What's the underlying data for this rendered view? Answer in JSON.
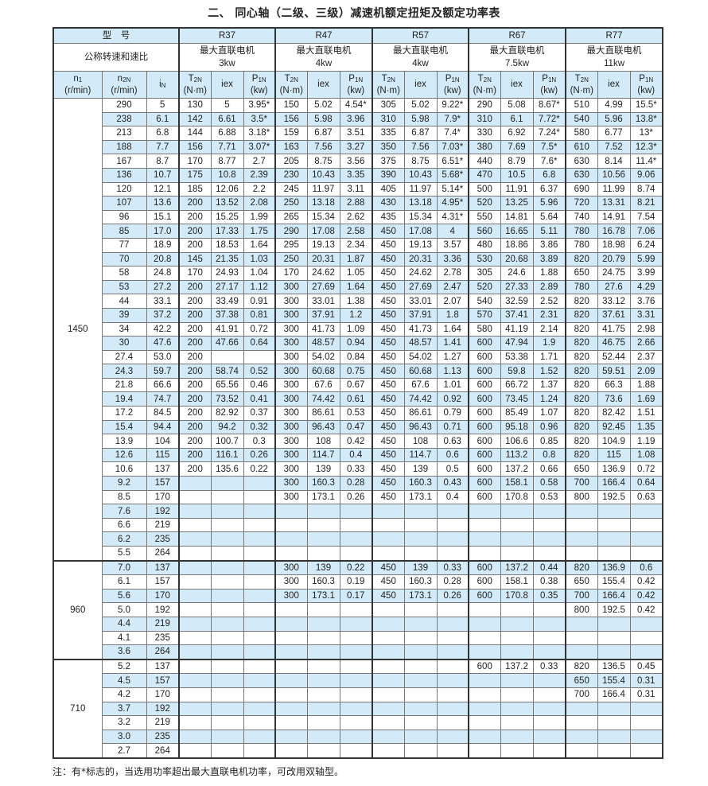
{
  "title": "二、 同心轴（二级、三级）减速机额定扭矩及额定功率表",
  "header": {
    "model_label": "型　号",
    "speed_label": "公称转速和速比",
    "models": [
      {
        "name": "R37",
        "motor_label": "最大直联电机",
        "motor_power": "3kw"
      },
      {
        "name": "R47",
        "motor_label": "最大直联电机",
        "motor_power": "4kw"
      },
      {
        "name": "R57",
        "motor_label": "最大直联电机",
        "motor_power": "4kw"
      },
      {
        "name": "R67",
        "motor_label": "最大直联电机",
        "motor_power": "7.5kw"
      },
      {
        "name": "R77",
        "motor_label": "最大直联电机",
        "motor_power": "11kw"
      }
    ],
    "col_n1": {
      "sym": "n",
      "sub": "1",
      "unit": "(r/min)"
    },
    "col_n2": {
      "sym": "n",
      "sub": "2N",
      "unit": "(r/min)"
    },
    "col_in": {
      "sym": "i",
      "sub": "N"
    },
    "col_t": {
      "sym": "T",
      "sub": "2N",
      "unit": "(N·m)"
    },
    "col_iex": "iex",
    "col_p": {
      "sym": "P",
      "sub": "1N",
      "unit": "(kw)"
    }
  },
  "groups": [
    {
      "n1": "1450",
      "rows": [
        [
          "290",
          "5",
          "130",
          "5",
          "3.95*",
          "150",
          "5.02",
          "4.54*",
          "305",
          "5.02",
          "9.22*",
          "290",
          "5.08",
          "8.67*",
          "510",
          "4.99",
          "15.5*"
        ],
        [
          "238",
          "6.1",
          "142",
          "6.61",
          "3.5*",
          "156",
          "5.98",
          "3.96",
          "310",
          "5.98",
          "7.9*",
          "310",
          "6.1",
          "7.72*",
          "540",
          "5.96",
          "13.8*"
        ],
        [
          "213",
          "6.8",
          "144",
          "6.88",
          "3.18*",
          "159",
          "6.87",
          "3.51",
          "335",
          "6.87",
          "7.4*",
          "330",
          "6.92",
          "7.24*",
          "580",
          "6.77",
          "13*"
        ],
        [
          "188",
          "7.7",
          "156",
          "7.71",
          "3.07*",
          "163",
          "7.56",
          "3.27",
          "350",
          "7.56",
          "7.03*",
          "380",
          "7.69",
          "7.5*",
          "610",
          "7.52",
          "12.3*"
        ],
        [
          "167",
          "8.7",
          "170",
          "8.77",
          "2.7",
          "205",
          "8.75",
          "3.56",
          "375",
          "8.75",
          "6.51*",
          "440",
          "8.79",
          "7.6*",
          "630",
          "8.14",
          "11.4*"
        ],
        [
          "136",
          "10.7",
          "175",
          "10.8",
          "2.39",
          "230",
          "10.43",
          "3.35",
          "390",
          "10.43",
          "5.68*",
          "470",
          "10.5",
          "6.8",
          "630",
          "10.56",
          "9.06"
        ],
        [
          "120",
          "12.1",
          "185",
          "12.06",
          "2.2",
          "245",
          "11.97",
          "3.11",
          "405",
          "11.97",
          "5.14*",
          "500",
          "11.91",
          "6.37",
          "690",
          "11.99",
          "8.74"
        ],
        [
          "107",
          "13.6",
          "200",
          "13.52",
          "2.08",
          "250",
          "13.18",
          "2.88",
          "430",
          "13.18",
          "4.95*",
          "520",
          "13.25",
          "5.96",
          "720",
          "13.31",
          "8.21"
        ],
        [
          "96",
          "15.1",
          "200",
          "15.25",
          "1.99",
          "265",
          "15.34",
          "2.62",
          "435",
          "15.34",
          "4.31*",
          "550",
          "14.81",
          "5.64",
          "740",
          "14.91",
          "7.54"
        ],
        [
          "85",
          "17.0",
          "200",
          "17.33",
          "1.75",
          "290",
          "17.08",
          "2.58",
          "450",
          "17.08",
          "4",
          "560",
          "16.65",
          "5.11",
          "780",
          "16.78",
          "7.06"
        ],
        [
          "77",
          "18.9",
          "200",
          "18.53",
          "1.64",
          "295",
          "19.13",
          "2.34",
          "450",
          "19.13",
          "3.57",
          "480",
          "18.86",
          "3.86",
          "780",
          "18.98",
          "6.24"
        ],
        [
          "70",
          "20.8",
          "145",
          "21.35",
          "1.03",
          "250",
          "20.31",
          "1.87",
          "450",
          "20.31",
          "3.36",
          "530",
          "20.68",
          "3.89",
          "820",
          "20.79",
          "5.99"
        ],
        [
          "58",
          "24.8",
          "170",
          "24.93",
          "1.04",
          "170",
          "24.62",
          "1.05",
          "450",
          "24.62",
          "2.78",
          "305",
          "24.6",
          "1.88",
          "650",
          "24.75",
          "3.99"
        ],
        [
          "53",
          "27.2",
          "200",
          "27.17",
          "1.12",
          "300",
          "27.69",
          "1.64",
          "450",
          "27.69",
          "2.47",
          "520",
          "27.33",
          "2.89",
          "780",
          "27.6",
          "4.29"
        ],
        [
          "44",
          "33.1",
          "200",
          "33.49",
          "0.91",
          "300",
          "33.01",
          "1.38",
          "450",
          "33.01",
          "2.07",
          "540",
          "32.59",
          "2.52",
          "820",
          "33.12",
          "3.76"
        ],
        [
          "39",
          "37.2",
          "200",
          "37.38",
          "0.81",
          "300",
          "37.91",
          "1.2",
          "450",
          "37.91",
          "1.8",
          "570",
          "37.41",
          "2.31",
          "820",
          "37.61",
          "3.31"
        ],
        [
          "34",
          "42.2",
          "200",
          "41.91",
          "0.72",
          "300",
          "41.73",
          "1.09",
          "450",
          "41.73",
          "1.64",
          "580",
          "41.19",
          "2.14",
          "820",
          "41.75",
          "2.98"
        ],
        [
          "30",
          "47.6",
          "200",
          "47.66",
          "0.64",
          "300",
          "48.57",
          "0.94",
          "450",
          "48.57",
          "1.41",
          "600",
          "47.94",
          "1.9",
          "820",
          "46.75",
          "2.66"
        ],
        [
          "27.4",
          "53.0",
          "200",
          "",
          "",
          "300",
          "54.02",
          "0.84",
          "450",
          "54.02",
          "1.27",
          "600",
          "53.38",
          "1.71",
          "820",
          "52.44",
          "2.37"
        ],
        [
          "24.3",
          "59.7",
          "200",
          "58.74",
          "0.52",
          "300",
          "60.68",
          "0.75",
          "450",
          "60.68",
          "1.13",
          "600",
          "59.8",
          "1.52",
          "820",
          "59.51",
          "2.09"
        ],
        [
          "21.8",
          "66.6",
          "200",
          "65.56",
          "0.46",
          "300",
          "67.6",
          "0.67",
          "450",
          "67.6",
          "1.01",
          "600",
          "66.72",
          "1.37",
          "820",
          "66.3",
          "1.88"
        ],
        [
          "19.4",
          "74.7",
          "200",
          "73.52",
          "0.41",
          "300",
          "74.42",
          "0.61",
          "450",
          "74.42",
          "0.92",
          "600",
          "73.45",
          "1.24",
          "820",
          "73.6",
          "1.69"
        ],
        [
          "17.2",
          "84.5",
          "200",
          "82.92",
          "0.37",
          "300",
          "86.61",
          "0.53",
          "450",
          "86.61",
          "0.79",
          "600",
          "85.49",
          "1.07",
          "820",
          "82.42",
          "1.51"
        ],
        [
          "15.4",
          "94.4",
          "200",
          "94.2",
          "0.32",
          "300",
          "96.43",
          "0.47",
          "450",
          "96.43",
          "0.71",
          "600",
          "95.18",
          "0.96",
          "820",
          "92.45",
          "1.35"
        ],
        [
          "13.9",
          "104",
          "200",
          "100.7",
          "0.3",
          "300",
          "108",
          "0.42",
          "450",
          "108",
          "0.63",
          "600",
          "106.6",
          "0.85",
          "820",
          "104.9",
          "1.19"
        ],
        [
          "12.6",
          "115",
          "200",
          "116.1",
          "0.26",
          "300",
          "114.7",
          "0.4",
          "450",
          "114.7",
          "0.6",
          "600",
          "113.2",
          "0.8",
          "820",
          "115",
          "1.08"
        ],
        [
          "10.6",
          "137",
          "200",
          "135.6",
          "0.22",
          "300",
          "139",
          "0.33",
          "450",
          "139",
          "0.5",
          "600",
          "137.2",
          "0.66",
          "650",
          "136.9",
          "0.72"
        ],
        [
          "9.2",
          "157",
          "",
          "",
          "",
          "300",
          "160.3",
          "0.28",
          "450",
          "160.3",
          "0.43",
          "600",
          "158.1",
          "0.58",
          "700",
          "166.4",
          "0.64"
        ],
        [
          "8.5",
          "170",
          "",
          "",
          "",
          "300",
          "173.1",
          "0.26",
          "450",
          "173.1",
          "0.4",
          "600",
          "170.8",
          "0.53",
          "800",
          "192.5",
          "0.63"
        ],
        [
          "7.6",
          "192",
          "",
          "",
          "",
          "",
          "",
          "",
          "",
          "",
          "",
          "",
          "",
          "",
          "",
          "",
          ""
        ],
        [
          "6.6",
          "219",
          "",
          "",
          "",
          "",
          "",
          "",
          "",
          "",
          "",
          "",
          "",
          "",
          "",
          "",
          ""
        ],
        [
          "6.2",
          "235",
          "",
          "",
          "",
          "",
          "",
          "",
          "",
          "",
          "",
          "",
          "",
          "",
          "",
          "",
          ""
        ],
        [
          "5.5",
          "264",
          "",
          "",
          "",
          "",
          "",
          "",
          "",
          "",
          "",
          "",
          "",
          "",
          "",
          "",
          ""
        ]
      ]
    },
    {
      "n1": "960",
      "rows": [
        [
          "7.0",
          "137",
          "",
          "",
          "",
          "300",
          "139",
          "0.22",
          "450",
          "139",
          "0.33",
          "600",
          "137.2",
          "0.44",
          "820",
          "136.9",
          "0.6"
        ],
        [
          "6.1",
          "157",
          "",
          "",
          "",
          "300",
          "160.3",
          "0.19",
          "450",
          "160.3",
          "0.28",
          "600",
          "158.1",
          "0.38",
          "650",
          "155.4",
          "0.42"
        ],
        [
          "5.6",
          "170",
          "",
          "",
          "",
          "300",
          "173.1",
          "0.17",
          "450",
          "173.1",
          "0.26",
          "600",
          "170.8",
          "0.35",
          "700",
          "166.4",
          "0.42"
        ],
        [
          "5.0",
          "192",
          "",
          "",
          "",
          "",
          "",
          "",
          "",
          "",
          "",
          "",
          "",
          "",
          "800",
          "192.5",
          "0.42"
        ],
        [
          "4.4",
          "219",
          "",
          "",
          "",
          "",
          "",
          "",
          "",
          "",
          "",
          "",
          "",
          "",
          "",
          "",
          ""
        ],
        [
          "4.1",
          "235",
          "",
          "",
          "",
          "",
          "",
          "",
          "",
          "",
          "",
          "",
          "",
          "",
          "",
          "",
          ""
        ],
        [
          "3.6",
          "264",
          "",
          "",
          "",
          "",
          "",
          "",
          "",
          "",
          "",
          "",
          "",
          "",
          "",
          "",
          ""
        ]
      ]
    },
    {
      "n1": "710",
      "rows": [
        [
          "5.2",
          "137",
          "",
          "",
          "",
          "",
          "",
          "",
          "",
          "",
          "",
          "600",
          "137.2",
          "0.33",
          "820",
          "136.5",
          "0.45"
        ],
        [
          "4.5",
          "157",
          "",
          "",
          "",
          "",
          "",
          "",
          "",
          "",
          "",
          "",
          "",
          "",
          "650",
          "155.4",
          "0.31"
        ],
        [
          "4.2",
          "170",
          "",
          "",
          "",
          "",
          "",
          "",
          "",
          "",
          "",
          "",
          "",
          "",
          "700",
          "166.4",
          "0.31"
        ],
        [
          "3.7",
          "192",
          "",
          "",
          "",
          "",
          "",
          "",
          "",
          "",
          "",
          "",
          "",
          "",
          "",
          "",
          ""
        ],
        [
          "3.2",
          "219",
          "",
          "",
          "",
          "",
          "",
          "",
          "",
          "",
          "",
          "",
          "",
          "",
          "",
          "",
          ""
        ],
        [
          "3.0",
          "235",
          "",
          "",
          "",
          "",
          "",
          "",
          "",
          "",
          "",
          "",
          "",
          "",
          "",
          "",
          ""
        ],
        [
          "2.7",
          "264",
          "",
          "",
          "",
          "",
          "",
          "",
          "",
          "",
          "",
          "",
          "",
          "",
          "",
          "",
          ""
        ]
      ]
    }
  ],
  "note": "注：有*标志的，当选用功率超出最大直联电机功率，可改用双轴型。",
  "colors": {
    "stripe": "#d3ebf8",
    "border": "#777777"
  }
}
